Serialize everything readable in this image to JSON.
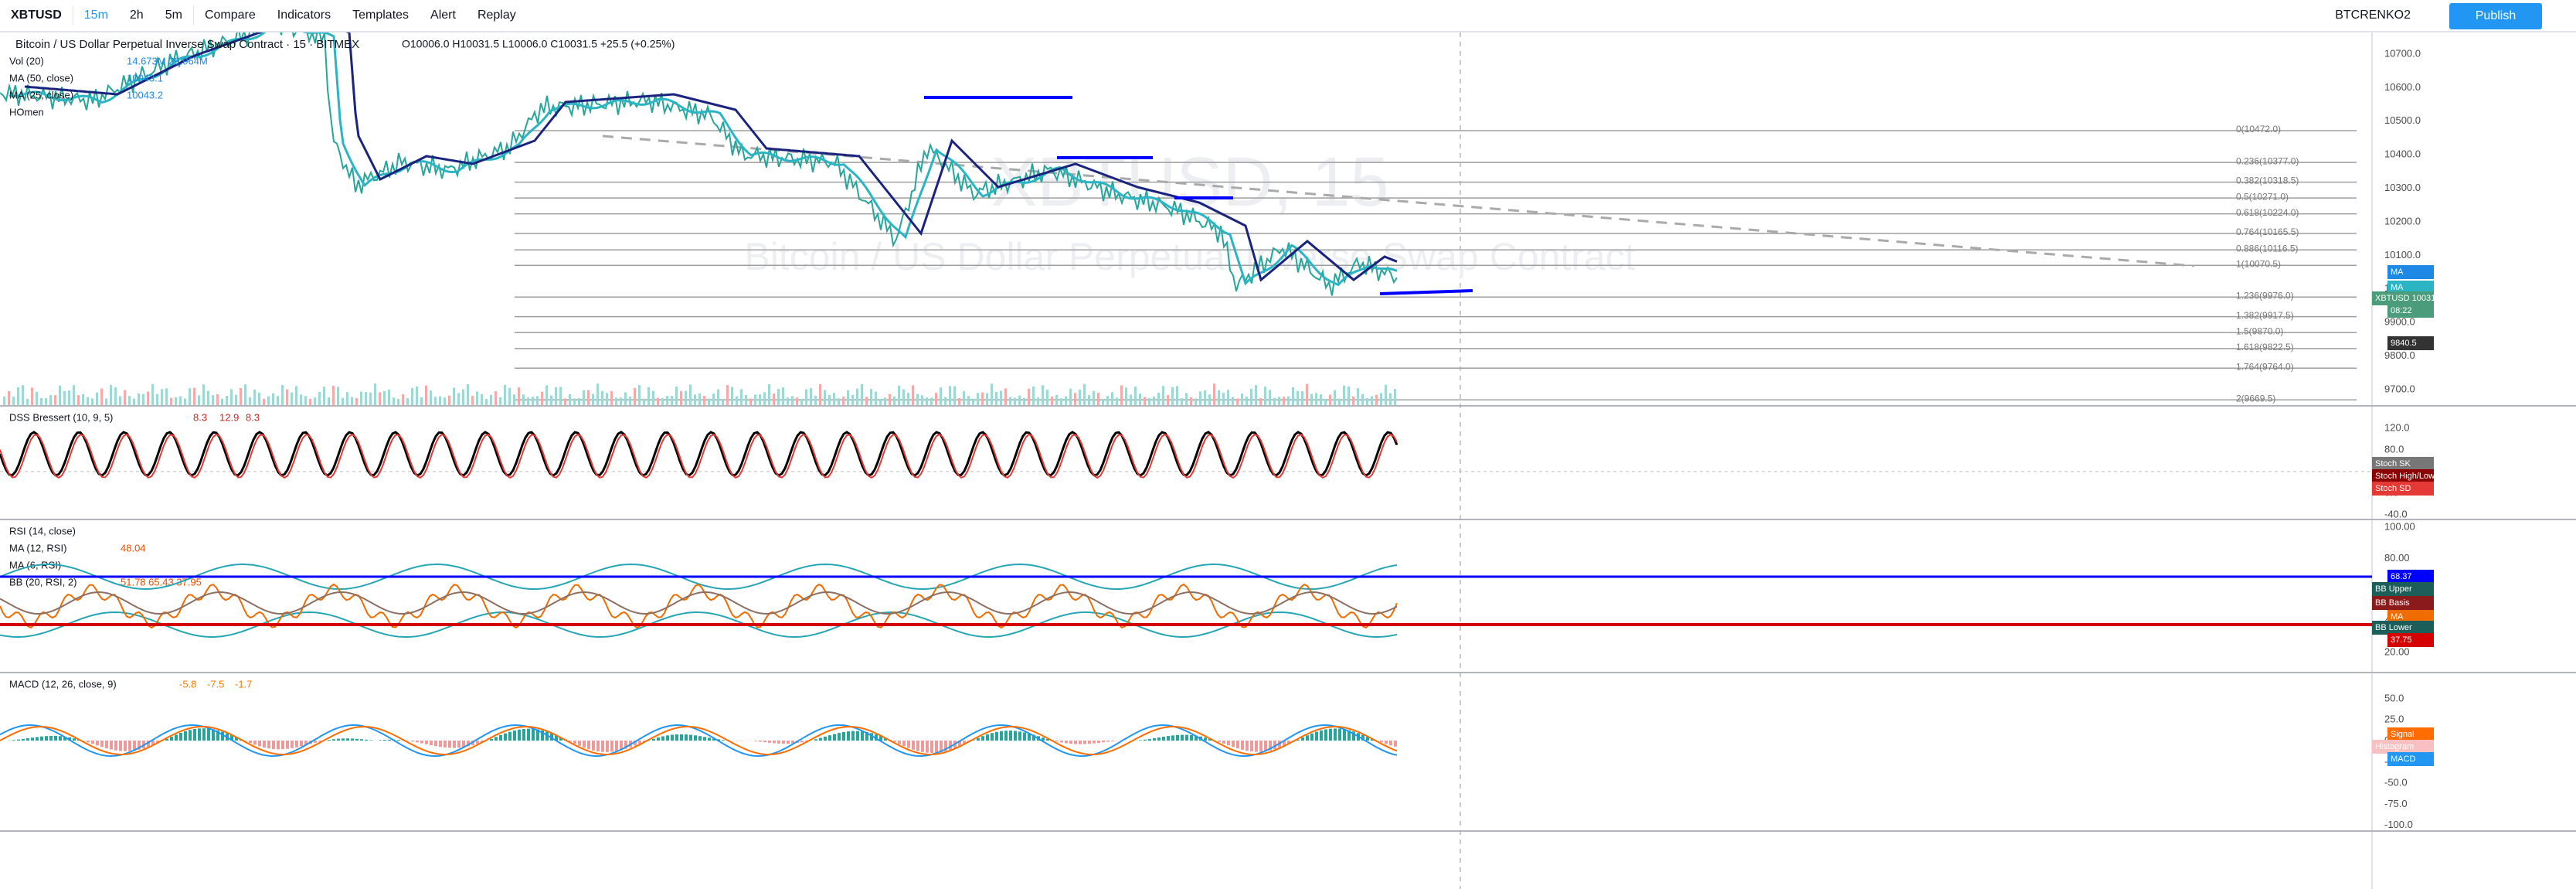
{
  "toolbar": {
    "symbol": "XBTUSD",
    "intervals": [
      "15m",
      "2h",
      "5m"
    ],
    "buttons": [
      "Compare",
      "Indicators",
      "Templates",
      "Alert",
      "Replay"
    ],
    "layout_name": "BTCRENKO2",
    "publish": "Publish"
  },
  "main_pane": {
    "title": "Bitcoin / US Dollar Perpetual Inverse Swap Contract · 15 · BITMEX",
    "ohlc": "O10006.0 H10031.5 L10006.0 C10031.5 +25.5 (+0.25%)",
    "indicators": [
      {
        "name": "Vol (20)",
        "values": "14.673M 29.964M"
      },
      {
        "name": "MA (50, close)",
        "values": "10043.1"
      },
      {
        "name": "MA (25, close)",
        "values": "10043.2"
      },
      {
        "name": "HOmen",
        "values": ""
      }
    ],
    "watermark_symbol": "XBTUSD, 15",
    "watermark_name": "Bitcoin / US Dollar Perpetual Inverse Swap Contract",
    "axis": [
      "10700.0",
      "10600.0",
      "10500.0",
      "10400.0",
      "10300.0",
      "10200.0",
      "10100.0",
      "10000.0",
      "9900.0",
      "9800.0",
      "9700.0"
    ],
    "fib_levels": [
      {
        "value": 10472.0,
        "label": "0(10472.0)"
      },
      {
        "value": 10377.0,
        "label": "0.236(10377.0)"
      },
      {
        "value": 10318.5,
        "label": "0.382(10318.5)"
      },
      {
        "value": 10271.0,
        "label": "0.5(10271.0)"
      },
      {
        "value": 10224.0,
        "label": "0.618(10224.0)"
      },
      {
        "value": 10165.5,
        "label": "0.764(10165.5)"
      },
      {
        "value": 10116.5,
        "label": "0.886(10116.5)"
      },
      {
        "value": 10070.5,
        "label": "1(10070.5)"
      },
      {
        "value": 9976.0,
        "label": "1.236(9976.0)"
      },
      {
        "value": 9917.5,
        "label": "1.382(9917.5)"
      },
      {
        "value": 9870.0,
        "label": "1.5(9870.0)"
      },
      {
        "value": 9822.5,
        "label": "1.618(9822.5)"
      },
      {
        "value": 9764.0,
        "label": "1.764(9764.0)"
      },
      {
        "value": 9669.5,
        "label": "2(9669.5)"
      }
    ],
    "tags": [
      "MA",
      "MA",
      "XBTUSD 10031.5",
      "08:22",
      "9840.5"
    ],
    "volume_label": "Volume"
  },
  "dss_pane": {
    "legend": "DSS Bressert (10, 9, 5)",
    "values": [
      "8.3",
      "12.9",
      "8.3"
    ],
    "axis": [
      "120.0",
      "80.0",
      "40.0",
      "0.0",
      "-40.0"
    ],
    "tags": [
      "Stoch SK",
      "Stoch High/Low",
      "Stoch SD"
    ]
  },
  "rsi_pane": {
    "legends": [
      {
        "name": "RSI (14, close)",
        "values": ""
      },
      {
        "name": "MA (12, RSI)",
        "values": "48.04"
      },
      {
        "name": "MA (6, RSI)",
        "values": ""
      },
      {
        "name": "BB (20, RSI, 2)",
        "values": "51.78 65.43 37.95"
      }
    ],
    "axis": [
      "100.00",
      "80.00",
      "60.00",
      "40.00",
      "20.00"
    ],
    "tags": [
      "68.37",
      "BB Upper",
      "BB Basis",
      "MA",
      "BB Lower",
      "37.75"
    ]
  },
  "macd_pane": {
    "legend": "MACD (12, 26, close, 9)",
    "values": [
      "-5.8",
      "-7.5",
      "-1.7"
    ],
    "axis": [
      "50.0",
      "25.0",
      "0.0",
      "-25.0",
      "-50.0",
      "-75.0",
      "-100.0"
    ],
    "tags": [
      "Signal",
      "Histogram",
      "MACD"
    ]
  }
}
